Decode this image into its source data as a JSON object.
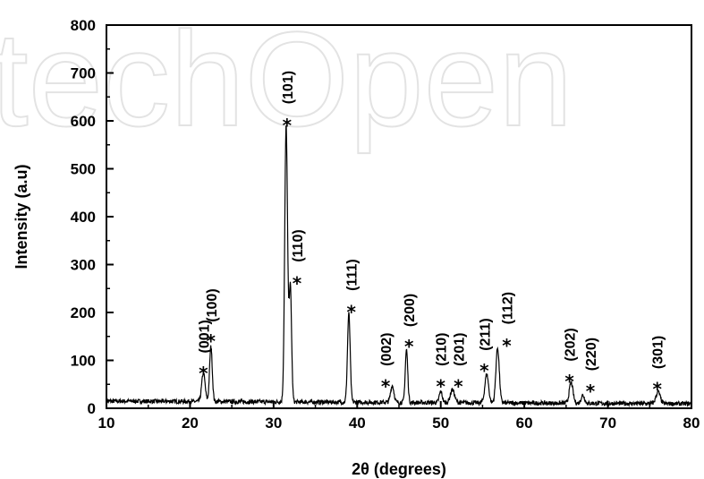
{
  "chart_data": {
    "type": "line",
    "xlabel": "2θ (degrees)",
    "ylabel": "Intensity (a.u)",
    "xlim": [
      10,
      80
    ],
    "ylim": [
      0,
      800
    ],
    "xticks": [
      10,
      20,
      30,
      40,
      50,
      60,
      70,
      80
    ],
    "yticks": [
      0,
      100,
      200,
      300,
      400,
      500,
      600,
      700,
      800
    ],
    "grid": false,
    "line_color": "#000000",
    "watermark_logo": "techOpen",
    "baseline": 15,
    "peaks": [
      {
        "x": 21.6,
        "y": 75,
        "w": 0.2
      },
      {
        "x": 22.5,
        "y": 130,
        "w": 0.16
      },
      {
        "x": 31.5,
        "y": 590,
        "w": 0.17
      },
      {
        "x": 32.0,
        "y": 255,
        "w": 0.15
      },
      {
        "x": 39.0,
        "y": 200,
        "w": 0.16
      },
      {
        "x": 44.2,
        "y": 50,
        "w": 0.2
      },
      {
        "x": 45.9,
        "y": 125,
        "w": 0.15
      },
      {
        "x": 50.0,
        "y": 38,
        "w": 0.18
      },
      {
        "x": 51.4,
        "y": 42,
        "w": 0.25
      },
      {
        "x": 55.5,
        "y": 75,
        "w": 0.22
      },
      {
        "x": 56.8,
        "y": 130,
        "w": 0.2
      },
      {
        "x": 65.6,
        "y": 58,
        "w": 0.22
      },
      {
        "x": 67.0,
        "y": 32,
        "w": 0.2
      },
      {
        "x": 76.0,
        "y": 40,
        "w": 0.25
      }
    ],
    "annotations": [
      {
        "label": "(001)",
        "x": 21.6,
        "star_y": 82,
        "label_y": 115
      },
      {
        "label": "(100)",
        "x": 22.5,
        "star_y": 150,
        "label_y": 180
      },
      {
        "label": "(101)",
        "x": 31.6,
        "star_y": 600,
        "label_y": 635
      },
      {
        "label": "(110)",
        "x": 32.8,
        "star_y": 270,
        "label_y": 305
      },
      {
        "label": "(111)",
        "x": 39.3,
        "star_y": 210,
        "label_y": 245
      },
      {
        "label": "(002)",
        "x": 43.4,
        "star_y": 55,
        "label_y": 88
      },
      {
        "label": "(200)",
        "x": 46.2,
        "star_y": 138,
        "label_y": 170
      },
      {
        "label": "(210)",
        "x": 50.0,
        "star_y": 55,
        "label_y": 88
      },
      {
        "label": "(201)",
        "x": 52.1,
        "star_y": 55,
        "label_y": 88
      },
      {
        "label": "(211)",
        "x": 55.2,
        "star_y": 88,
        "label_y": 120
      },
      {
        "label": "(112)",
        "x": 57.9,
        "star_y": 140,
        "label_y": 175
      },
      {
        "label": "(202)",
        "x": 65.4,
        "star_y": 65,
        "label_y": 98
      },
      {
        "label": "(220)",
        "x": 67.9,
        "star_y": 45,
        "label_y": 78
      },
      {
        "label": "(301)",
        "x": 75.9,
        "star_y": 50,
        "label_y": 82
      }
    ]
  }
}
